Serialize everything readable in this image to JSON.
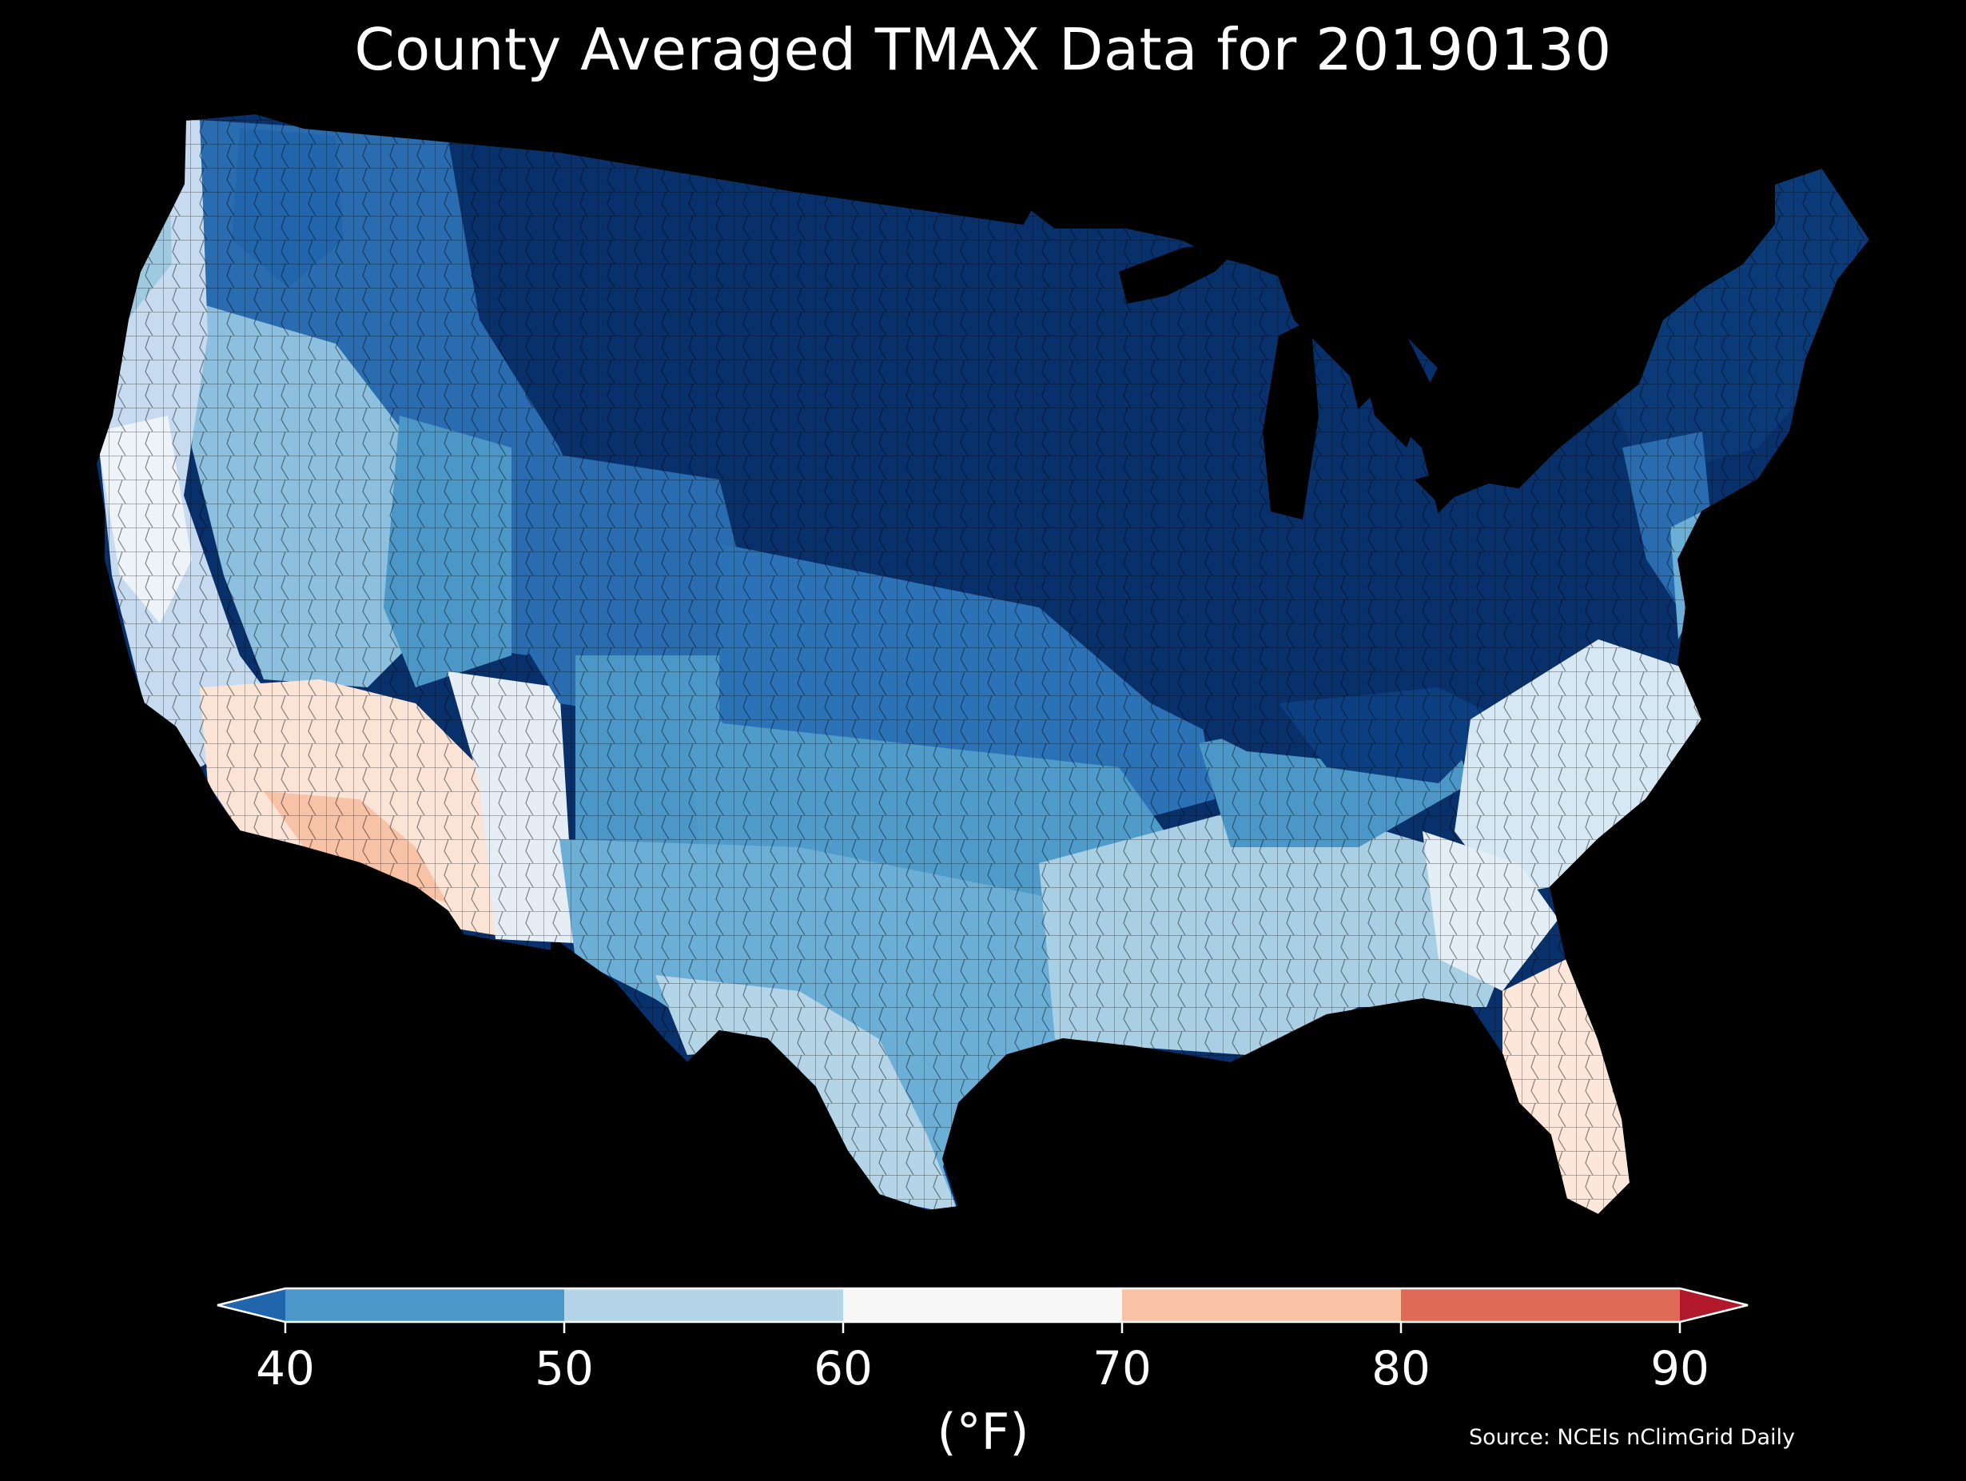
{
  "title": "County Averaged TMAX Data for 20190130",
  "legend": {
    "unit": "(°F)",
    "ticks": [
      "40",
      "50",
      "60",
      "70",
      "80",
      "90"
    ],
    "bins": [
      {
        "range": "<40",
        "color": "#2166ac"
      },
      {
        "range": "40-50",
        "color": "#4b98c8"
      },
      {
        "range": "50-60",
        "color": "#b4d5e8"
      },
      {
        "range": "60-70",
        "color": "#f7f7f7"
      },
      {
        "range": "70-80",
        "color": "#f8c2a7"
      },
      {
        "range": "80-90",
        "color": "#de6a57"
      },
      {
        "range": ">90",
        "color": "#b2182b"
      }
    ]
  },
  "source": "Source: NCEIs nClimGrid Daily",
  "map": {
    "region": "Contiguous United States",
    "variable": "TMAX",
    "background_color": "#000000",
    "regional_colors": {
      "north_interior": "#08306b",
      "northeast": "#0a3a78",
      "northwest_interior": "#2a6cb0",
      "great_basin": "#8cc0de",
      "pacific_coast": "#c6dbef",
      "desert_southwest": "#fbe3d6",
      "southern_plains": "#6baed6",
      "gulf_coast": "#a9cfe5",
      "florida": "#fde6da",
      "mid_atlantic_coast": "#d6e8f3"
    }
  }
}
